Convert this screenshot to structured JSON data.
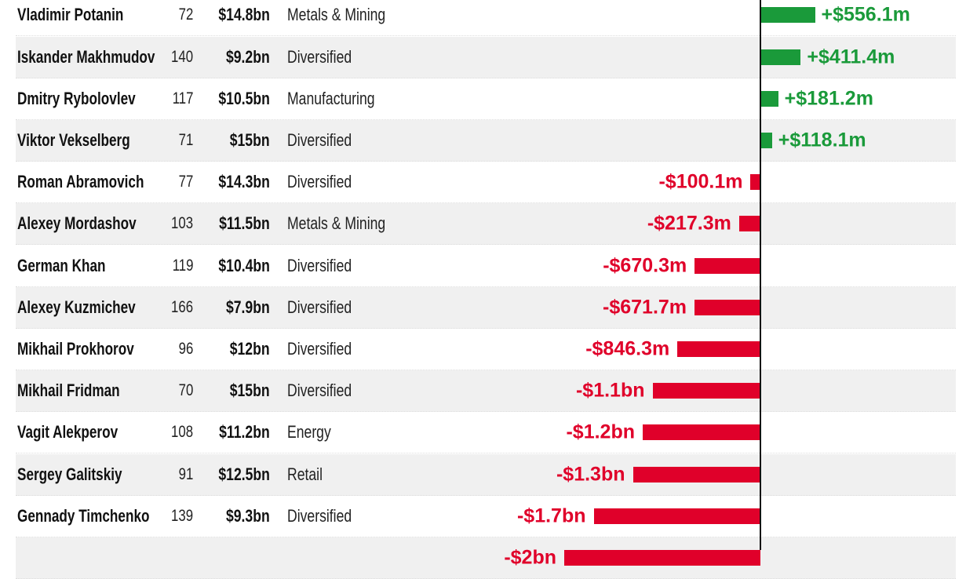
{
  "chart_data": {
    "type": "bar",
    "orientation": "horizontal",
    "columns": [
      "name",
      "rank",
      "net_worth",
      "sector",
      "change"
    ],
    "unit": "$m",
    "colors": {
      "positive": "#1a9a3a",
      "negative": "#e0002a",
      "alt_row": "#f0f0f0"
    },
    "rows": [
      {
        "name": "Vladimir Potanin",
        "rank": "72",
        "worth": "$14.8bn",
        "sector": "Metals & Mining",
        "change": 556.1,
        "label": "+$556.1m"
      },
      {
        "name": "Iskander Makhmudov",
        "rank": "140",
        "worth": "$9.2bn",
        "sector": "Diversified",
        "change": 411.4,
        "label": "+$411.4m"
      },
      {
        "name": "Dmitry Rybolovlev",
        "rank": "117",
        "worth": "$10.5bn",
        "sector": "Manufacturing",
        "change": 181.2,
        "label": "+$181.2m"
      },
      {
        "name": "Viktor Vekselberg",
        "rank": "71",
        "worth": "$15bn",
        "sector": "Diversified",
        "change": 118.1,
        "label": "+$118.1m"
      },
      {
        "name": "Roman Abramovich",
        "rank": "77",
        "worth": "$14.3bn",
        "sector": "Diversified",
        "change": -100.1,
        "label": "-$100.1m"
      },
      {
        "name": "Alexey Mordashov",
        "rank": "103",
        "worth": "$11.5bn",
        "sector": "Metals & Mining",
        "change": -217.3,
        "label": "-$217.3m"
      },
      {
        "name": "German Khan",
        "rank": "119",
        "worth": "$10.4bn",
        "sector": "Diversified",
        "change": -670.3,
        "label": "-$670.3m"
      },
      {
        "name": "Alexey Kuzmichev",
        "rank": "166",
        "worth": "$7.9bn",
        "sector": "Diversified",
        "change": -671.7,
        "label": "-$671.7m"
      },
      {
        "name": "Mikhail Prokhorov",
        "rank": "96",
        "worth": "$12bn",
        "sector": "Diversified",
        "change": -846.3,
        "label": "-$846.3m"
      },
      {
        "name": "Mikhail Fridman",
        "rank": "70",
        "worth": "$15bn",
        "sector": "Diversified",
        "change": -1100,
        "label": "-$1.1bn"
      },
      {
        "name": "Vagit Alekperov",
        "rank": "108",
        "worth": "$11.2bn",
        "sector": "Energy",
        "change": -1200,
        "label": "-$1.2bn"
      },
      {
        "name": "Sergey Galitskiy",
        "rank": "91",
        "worth": "$12.5bn",
        "sector": "Retail",
        "change": -1300,
        "label": "-$1.3bn"
      },
      {
        "name": "Gennady Timchenko",
        "rank": "139",
        "worth": "$9.3bn",
        "sector": "Diversified",
        "change": -1700,
        "label": "-$1.7bn"
      },
      {
        "name": "",
        "rank": "",
        "worth": "",
        "sector": "",
        "change": -2000,
        "label": "-$2bn"
      }
    ]
  }
}
